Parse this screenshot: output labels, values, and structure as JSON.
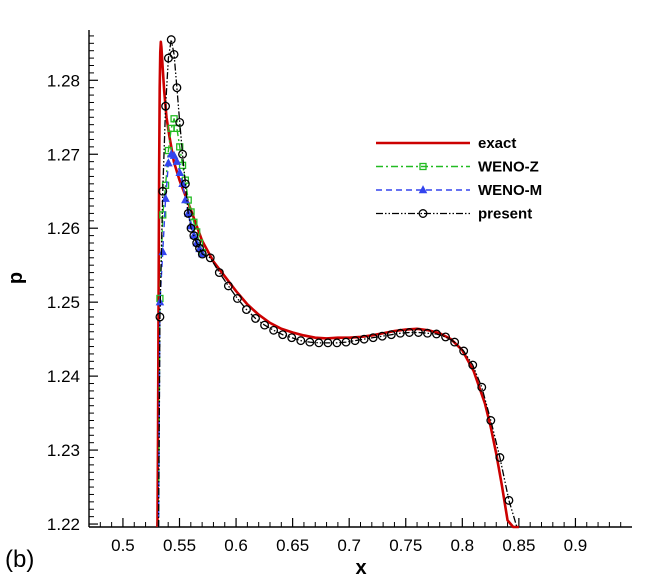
{
  "panel_label": "(b)",
  "chart_data": {
    "type": "line",
    "xlabel": "x",
    "ylabel": "p",
    "xlim": [
      0.47,
      0.95
    ],
    "ylim": [
      1.2196,
      1.2868
    ],
    "x_ticks": [
      "0.5",
      "0.55",
      "0.6",
      "0.65",
      "0.7",
      "0.75",
      "0.8",
      "0.85",
      "0.9"
    ],
    "y_ticks": [
      "1.22",
      "1.23",
      "1.24",
      "1.25",
      "1.26",
      "1.27",
      "1.28"
    ],
    "grid": false,
    "legend_position": "top-right",
    "series": [
      {
        "name": "exact",
        "color": "#cc0000",
        "style": "solid",
        "marker": "none",
        "x": [
          0.5305,
          0.531,
          0.5315,
          0.532,
          0.5325,
          0.533,
          0.5335,
          0.534,
          0.535,
          0.5365,
          0.5385,
          0.541,
          0.545,
          0.55,
          0.555,
          0.56,
          0.57,
          0.58,
          0.59,
          0.6,
          0.61,
          0.62,
          0.63,
          0.64,
          0.65,
          0.66,
          0.67,
          0.68,
          0.69,
          0.7,
          0.71,
          0.72,
          0.73,
          0.74,
          0.75,
          0.76,
          0.77,
          0.78,
          0.79,
          0.8,
          0.81,
          0.82,
          0.825,
          0.83,
          0.835,
          0.84,
          0.845,
          0.85
        ],
        "y": [
          1.2196,
          1.232,
          1.25,
          1.268,
          1.279,
          1.2838,
          1.2852,
          1.2845,
          1.282,
          1.2785,
          1.275,
          1.2725,
          1.269,
          1.2665,
          1.2645,
          1.2625,
          1.2583,
          1.2555,
          1.2535,
          1.2515,
          1.2497,
          1.2483,
          1.2472,
          1.2464,
          1.2459,
          1.2455,
          1.2452,
          1.2451,
          1.2452,
          1.2452,
          1.2453,
          1.2455,
          1.2458,
          1.2461,
          1.2463,
          1.2464,
          1.2462,
          1.2458,
          1.245,
          1.2435,
          1.2407,
          1.2363,
          1.2332,
          1.2295,
          1.2252,
          1.2205,
          1.2196,
          1.2196
        ]
      },
      {
        "name": "WENO-Z",
        "color": "#22bb22",
        "style": "dashdot",
        "marker": "square",
        "x": [
          0.5315,
          0.5327,
          0.5352,
          0.5377,
          0.5402,
          0.5427,
          0.5452,
          0.5477,
          0.5502,
          0.5527,
          0.5552,
          0.5577,
          0.5602,
          0.5627,
          0.5652,
          0.5677,
          0.5702
        ],
        "y": [
          1.2196,
          1.2505,
          1.2618,
          1.2658,
          1.2705,
          1.2735,
          1.2748,
          1.2735,
          1.271,
          1.2685,
          1.2665,
          1.2638,
          1.2622,
          1.2608,
          1.2595,
          1.258,
          1.2567
        ]
      },
      {
        "name": "WENO-M",
        "color": "#3344ee",
        "style": "dashed",
        "marker": "triangle",
        "x": [
          0.5315,
          0.5327,
          0.5352,
          0.5377,
          0.5402,
          0.5427,
          0.5452,
          0.5477,
          0.5502,
          0.5527,
          0.5552,
          0.5577,
          0.5602,
          0.5627,
          0.5652,
          0.5677,
          0.5702
        ],
        "y": [
          1.2196,
          1.25,
          1.2568,
          1.264,
          1.2688,
          1.27,
          1.2698,
          1.269,
          1.2675,
          1.266,
          1.2638,
          1.262,
          1.2603,
          1.259,
          1.258,
          1.2572,
          1.2565
        ]
      },
      {
        "name": "present",
        "color": "#000000",
        "style": "dashdotdot",
        "marker": "circle",
        "x": [
          0.5315,
          0.5327,
          0.5352,
          0.5377,
          0.5402,
          0.5427,
          0.5452,
          0.5477,
          0.5502,
          0.5527,
          0.5552,
          0.5577,
          0.5602,
          0.5627,
          0.5652,
          0.5677,
          0.5702,
          0.5772,
          0.5852,
          0.5932,
          0.6012,
          0.6092,
          0.6172,
          0.6252,
          0.6332,
          0.6412,
          0.6492,
          0.6572,
          0.6652,
          0.6732,
          0.6812,
          0.6892,
          0.6972,
          0.7052,
          0.7132,
          0.7212,
          0.7292,
          0.7372,
          0.7452,
          0.7532,
          0.7612,
          0.7692,
          0.7772,
          0.7852,
          0.7932,
          0.8012,
          0.8092,
          0.8172,
          0.8252,
          0.8332,
          0.8412,
          0.8482
        ],
        "y": [
          1.2196,
          1.248,
          1.265,
          1.2765,
          1.283,
          1.2855,
          1.2835,
          1.279,
          1.2743,
          1.27,
          1.266,
          1.262,
          1.26,
          1.259,
          1.258,
          1.2573,
          1.2565,
          1.256,
          1.254,
          1.2522,
          1.2505,
          1.249,
          1.2478,
          1.2469,
          1.2462,
          1.2456,
          1.2452,
          1.2448,
          1.2446,
          1.2445,
          1.2445,
          1.2445,
          1.2446,
          1.2448,
          1.245,
          1.2452,
          1.2454,
          1.2456,
          1.2458,
          1.2459,
          1.2459,
          1.2458,
          1.2457,
          1.2453,
          1.2446,
          1.2434,
          1.2415,
          1.2385,
          1.234,
          1.229,
          1.2232,
          1.2196
        ]
      }
    ]
  }
}
